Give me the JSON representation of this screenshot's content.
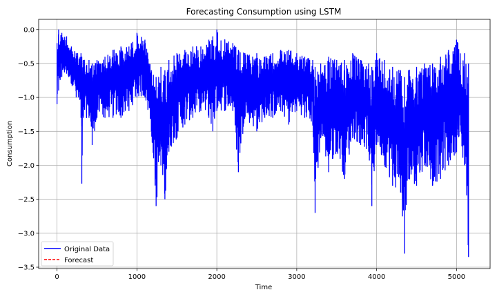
{
  "chart_data": {
    "type": "line",
    "title": "Forecasting Consumption using LSTM",
    "xlabel": "Time",
    "ylabel": "Consumption",
    "xlim": [
      -230,
      5420
    ],
    "ylim": [
      -3.52,
      0.15
    ],
    "x_ticks": [
      0,
      1000,
      2000,
      3000,
      4000,
      5000
    ],
    "x_tick_labels": [
      "0",
      "1000",
      "2000",
      "3000",
      "4000",
      "5000"
    ],
    "y_ticks": [
      0.0,
      -0.5,
      -1.0,
      -1.5,
      -2.0,
      -2.5,
      -3.0,
      -3.5
    ],
    "y_tick_labels": [
      "0.0",
      "−0.5",
      "−1.0",
      "−1.5",
      "−2.0",
      "−2.5",
      "−3.0",
      "−3.5"
    ],
    "grid": true,
    "legend_position": "lower-left",
    "series": [
      {
        "name": "Original Data",
        "color": "#0000ff",
        "style": "solid",
        "band": [
          [
            0,
            -0.2,
            -1.1
          ],
          [
            20,
            0.0,
            -0.9
          ],
          [
            60,
            -0.05,
            -0.7
          ],
          [
            120,
            -0.1,
            -0.65
          ],
          [
            180,
            -0.25,
            -0.8
          ],
          [
            240,
            -0.35,
            -1.0
          ],
          [
            300,
            -0.35,
            -1.3
          ],
          [
            310,
            -0.4,
            -2.27
          ],
          [
            330,
            -0.45,
            -1.3
          ],
          [
            400,
            -0.45,
            -1.3
          ],
          [
            440,
            -0.5,
            -1.7
          ],
          [
            500,
            -0.45,
            -1.3
          ],
          [
            600,
            -0.4,
            -1.3
          ],
          [
            700,
            -0.3,
            -1.3
          ],
          [
            800,
            -0.25,
            -1.3
          ],
          [
            900,
            -0.25,
            -1.2
          ],
          [
            1000,
            -0.05,
            -1.0
          ],
          [
            1100,
            -0.15,
            -1.0
          ],
          [
            1180,
            -0.6,
            -1.5
          ],
          [
            1240,
            -0.7,
            -2.6
          ],
          [
            1300,
            -0.55,
            -2.0
          ],
          [
            1350,
            -0.6,
            -2.5
          ],
          [
            1400,
            -0.45,
            -1.8
          ],
          [
            1500,
            -0.35,
            -1.6
          ],
          [
            1600,
            -0.3,
            -1.4
          ],
          [
            1700,
            -0.25,
            -1.3
          ],
          [
            1800,
            -0.25,
            -1.2
          ],
          [
            1900,
            -0.15,
            -1.3
          ],
          [
            1950,
            -0.1,
            -1.5
          ],
          [
            2000,
            0.0,
            -1.2
          ],
          [
            2100,
            -0.15,
            -1.2
          ],
          [
            2200,
            -0.2,
            -1.2
          ],
          [
            2270,
            -0.3,
            -2.1
          ],
          [
            2350,
            -0.35,
            -1.3
          ],
          [
            2500,
            -0.35,
            -1.5
          ],
          [
            2600,
            -0.4,
            -1.3
          ],
          [
            2700,
            -0.35,
            -1.3
          ],
          [
            2800,
            -0.3,
            -1.2
          ],
          [
            2900,
            -0.3,
            -1.4
          ],
          [
            3000,
            -0.35,
            -1.2
          ],
          [
            3100,
            -0.4,
            -1.3
          ],
          [
            3200,
            -0.45,
            -1.4
          ],
          [
            3230,
            -0.55,
            -2.7
          ],
          [
            3300,
            -0.5,
            -1.6
          ],
          [
            3400,
            -0.4,
            -2.1
          ],
          [
            3500,
            -0.45,
            -1.8
          ],
          [
            3600,
            -0.45,
            -2.2
          ],
          [
            3700,
            -0.35,
            -1.6
          ],
          [
            3800,
            -0.45,
            -1.7
          ],
          [
            3900,
            -0.5,
            -1.8
          ],
          [
            3940,
            -0.55,
            -2.6
          ],
          [
            4000,
            -0.35,
            -1.7
          ],
          [
            4100,
            -0.45,
            -2.0
          ],
          [
            4200,
            -0.55,
            -2.3
          ],
          [
            4300,
            -0.6,
            -2.4
          ],
          [
            4350,
            -0.7,
            -3.3
          ],
          [
            4400,
            -0.6,
            -2.2
          ],
          [
            4500,
            -0.55,
            -2.3
          ],
          [
            4600,
            -0.5,
            -2.0
          ],
          [
            4700,
            -0.5,
            -2.3
          ],
          [
            4800,
            -0.4,
            -2.2
          ],
          [
            4900,
            -0.3,
            -2.0
          ],
          [
            5000,
            -0.15,
            -1.8
          ],
          [
            5100,
            -0.35,
            -2.0
          ],
          [
            5150,
            -0.5,
            -3.35
          ]
        ]
      },
      {
        "name": "Forecast",
        "color": "#ff0000",
        "style": "dashed",
        "values": []
      }
    ]
  }
}
